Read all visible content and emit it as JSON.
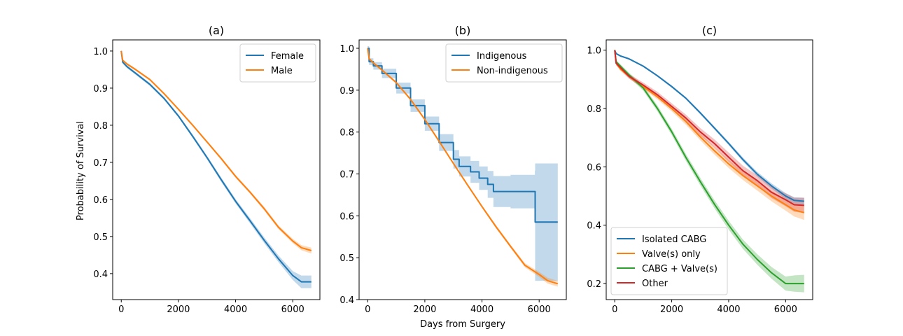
{
  "figure": {
    "xlabel": "Days from Surgery",
    "ylabel": "Probability of Survival"
  },
  "chart_data": [
    {
      "type": "line",
      "title": "(a)",
      "xlim": [
        -300,
        6950
      ],
      "ylim": [
        0.33,
        1.03
      ],
      "xticks": [
        0,
        2000,
        4000,
        6000
      ],
      "yticks": [
        0.4,
        0.5,
        0.6,
        0.7,
        0.8,
        0.9,
        1.0
      ],
      "ytick_labels": [
        "0.4",
        "0.5",
        "0.6",
        "0.7",
        "0.8",
        "0.9",
        "1.0"
      ],
      "legend_position": "top-right",
      "confidence_band": true,
      "series": [
        {
          "name": "Female",
          "color": "#1f77b4",
          "x": [
            0,
            50,
            200,
            500,
            1000,
            1500,
            2000,
            2500,
            3000,
            3500,
            4000,
            4500,
            5000,
            5500,
            6000,
            6300,
            6650
          ],
          "y": [
            1.0,
            0.97,
            0.958,
            0.94,
            0.91,
            0.872,
            0.825,
            0.77,
            0.713,
            0.653,
            0.595,
            0.543,
            0.49,
            0.44,
            0.395,
            0.378,
            0.378
          ],
          "ci": [
            0.004,
            0.004,
            0.004,
            0.004,
            0.004,
            0.004,
            0.004,
            0.005,
            0.005,
            0.006,
            0.006,
            0.007,
            0.008,
            0.009,
            0.012,
            0.017,
            0.017
          ]
        },
        {
          "name": "Male",
          "color": "#ff7f0e",
          "x": [
            0,
            50,
            200,
            500,
            1000,
            1500,
            2000,
            2500,
            3000,
            3500,
            4000,
            4500,
            5000,
            5500,
            6000,
            6300,
            6650
          ],
          "y": [
            1.0,
            0.975,
            0.965,
            0.95,
            0.923,
            0.885,
            0.843,
            0.8,
            0.755,
            0.71,
            0.662,
            0.62,
            0.575,
            0.525,
            0.488,
            0.47,
            0.462
          ],
          "ci": [
            0.003,
            0.003,
            0.003,
            0.003,
            0.003,
            0.003,
            0.003,
            0.003,
            0.003,
            0.004,
            0.004,
            0.004,
            0.005,
            0.005,
            0.006,
            0.007,
            0.008
          ]
        }
      ]
    },
    {
      "type": "line",
      "title": "(b)",
      "xlim": [
        -300,
        6950
      ],
      "ylim": [
        0.4,
        1.02
      ],
      "xticks": [
        0,
        2000,
        4000,
        6000
      ],
      "yticks": [
        0.4,
        0.5,
        0.6,
        0.7,
        0.8,
        0.9,
        1.0
      ],
      "ytick_labels": [
        "0.4",
        "0.5",
        "0.6",
        "0.7",
        "0.8",
        "0.9",
        "1.0"
      ],
      "legend_position": "top-right",
      "confidence_band": true,
      "series": [
        {
          "name": "Indigenous",
          "color": "#1f77b4",
          "step": true,
          "x": [
            0,
            50,
            200,
            500,
            1000,
            1500,
            2000,
            2500,
            3000,
            3200,
            3600,
            3900,
            4200,
            4400,
            5000,
            5850,
            5860,
            6650
          ],
          "y": [
            1.0,
            0.968,
            0.958,
            0.94,
            0.905,
            0.863,
            0.82,
            0.775,
            0.735,
            0.718,
            0.705,
            0.69,
            0.675,
            0.658,
            0.658,
            0.658,
            0.585,
            0.585
          ],
          "ci": [
            0.005,
            0.008,
            0.009,
            0.011,
            0.013,
            0.015,
            0.017,
            0.02,
            0.022,
            0.024,
            0.026,
            0.028,
            0.032,
            0.037,
            0.04,
            0.05,
            0.14,
            0.14
          ]
        },
        {
          "name": "Non-indigenous",
          "color": "#ff7f0e",
          "x": [
            0,
            50,
            200,
            500,
            1000,
            1500,
            2000,
            2500,
            3000,
            3500,
            4000,
            4500,
            5000,
            5500,
            6000,
            6300,
            6650
          ],
          "y": [
            1.0,
            0.975,
            0.965,
            0.948,
            0.918,
            0.878,
            0.83,
            0.778,
            0.725,
            0.673,
            0.622,
            0.573,
            0.527,
            0.482,
            0.46,
            0.445,
            0.438
          ],
          "ci": [
            0.003,
            0.003,
            0.003,
            0.003,
            0.003,
            0.003,
            0.003,
            0.003,
            0.003,
            0.003,
            0.003,
            0.004,
            0.004,
            0.005,
            0.006,
            0.007,
            0.007
          ]
        }
      ]
    },
    {
      "type": "line",
      "title": "(c)",
      "xlim": [
        -300,
        6950
      ],
      "ylim": [
        0.145,
        1.035
      ],
      "xticks": [
        0,
        2000,
        4000,
        6000
      ],
      "yticks": [
        0.2,
        0.4,
        0.6,
        0.8,
        1.0
      ],
      "ytick_labels": [
        "0.2",
        "0.4",
        "0.6",
        "0.8",
        "1.0"
      ],
      "legend_position": "bottom-left",
      "confidence_band": true,
      "series": [
        {
          "name": "Isolated CABG",
          "color": "#1f77b4",
          "x": [
            0,
            50,
            200,
            500,
            1000,
            1500,
            2000,
            2500,
            3000,
            3500,
            4000,
            4500,
            5000,
            5500,
            6000,
            6300,
            6650
          ],
          "y": [
            1.0,
            0.988,
            0.98,
            0.97,
            0.945,
            0.912,
            0.875,
            0.835,
            0.785,
            0.733,
            0.68,
            0.625,
            0.575,
            0.535,
            0.5,
            0.485,
            0.482
          ],
          "ci": [
            0.003,
            0.003,
            0.003,
            0.003,
            0.003,
            0.003,
            0.004,
            0.004,
            0.005,
            0.005,
            0.006,
            0.007,
            0.008,
            0.009,
            0.01,
            0.011,
            0.012
          ]
        },
        {
          "name": "Valve(s) only",
          "color": "#ff7f0e",
          "x": [
            0,
            50,
            200,
            500,
            1000,
            1500,
            2000,
            2500,
            3000,
            3500,
            4000,
            4500,
            5000,
            5500,
            6000,
            6300,
            6650
          ],
          "y": [
            1.0,
            0.955,
            0.935,
            0.91,
            0.875,
            0.84,
            0.8,
            0.755,
            0.703,
            0.655,
            0.61,
            0.57,
            0.535,
            0.5,
            0.47,
            0.452,
            0.443
          ],
          "ci": [
            0.005,
            0.006,
            0.006,
            0.007,
            0.008,
            0.009,
            0.01,
            0.011,
            0.012,
            0.013,
            0.014,
            0.015,
            0.016,
            0.018,
            0.02,
            0.022,
            0.025
          ]
        },
        {
          "name": "CABG + Valve(s)",
          "color": "#2ca02c",
          "x": [
            0,
            50,
            200,
            500,
            1000,
            1500,
            2000,
            2500,
            3000,
            3500,
            4000,
            4500,
            5000,
            5500,
            6000,
            6300,
            6650
          ],
          "y": [
            1.0,
            0.96,
            0.945,
            0.915,
            0.87,
            0.8,
            0.72,
            0.632,
            0.55,
            0.472,
            0.4,
            0.335,
            0.283,
            0.237,
            0.2,
            0.2,
            0.2
          ],
          "ci": [
            0.005,
            0.006,
            0.007,
            0.008,
            0.009,
            0.01,
            0.011,
            0.012,
            0.013,
            0.014,
            0.015,
            0.016,
            0.018,
            0.02,
            0.024,
            0.028,
            0.03
          ]
        },
        {
          "name": "Other",
          "color": "#d62728",
          "x": [
            0,
            50,
            200,
            500,
            1000,
            1500,
            2000,
            2500,
            3000,
            3500,
            4000,
            4500,
            5000,
            5500,
            6000,
            6300,
            6650
          ],
          "y": [
            1.0,
            0.955,
            0.94,
            0.91,
            0.88,
            0.847,
            0.807,
            0.767,
            0.72,
            0.68,
            0.633,
            0.587,
            0.553,
            0.513,
            0.487,
            0.47,
            0.468
          ],
          "ci": [
            0.006,
            0.007,
            0.007,
            0.008,
            0.009,
            0.01,
            0.011,
            0.012,
            0.013,
            0.014,
            0.016,
            0.017,
            0.018,
            0.02,
            0.022,
            0.024,
            0.026
          ]
        }
      ]
    }
  ]
}
